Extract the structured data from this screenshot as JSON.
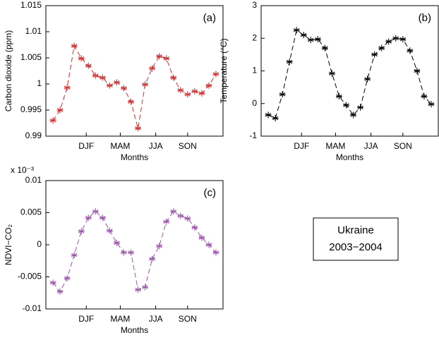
{
  "chart_data": [
    {
      "type": "line",
      "title": "(a)",
      "ylabel": "Carbon dioxide (ppm)",
      "xlabel": "Months",
      "color": "#e02828",
      "x": [
        1,
        2,
        3,
        4,
        5,
        6,
        7,
        8,
        9,
        10,
        11,
        12,
        13,
        14,
        15,
        16,
        17,
        18,
        19,
        20,
        21,
        22,
        23,
        24
      ],
      "values": [
        0.993,
        0.995,
        0.9993,
        1.0073,
        1.0049,
        1.0035,
        1.0016,
        1.0012,
        0.9997,
        1.0003,
        0.9992,
        0.9966,
        0.9915,
        0.9999,
        1.003,
        1.0053,
        1.0049,
        1.0012,
        0.9988,
        0.998,
        0.9986,
        0.9982,
        0.9997,
        1.0019
      ],
      "xlim": [
        0,
        25
      ],
      "xticks": [
        {
          "value": 5.7,
          "label": "DJF"
        },
        {
          "value": 10.5,
          "label": "MAM"
        },
        {
          "value": 15.5,
          "label": "JJA"
        },
        {
          "value": 20,
          "label": "SON"
        }
      ],
      "ylim": [
        0.99,
        1.015
      ],
      "yticks": [
        0.99,
        0.995,
        1,
        1.005,
        1.01,
        1.015
      ]
    },
    {
      "type": "line",
      "title": "(b)",
      "ylabel": "Temperature (°C)",
      "xlabel": "Months",
      "color": "#000000",
      "x": [
        1,
        2,
        3,
        4,
        5,
        6,
        7,
        8,
        9,
        10,
        11,
        12,
        13,
        14,
        15,
        16,
        17,
        18,
        19,
        20,
        21,
        22,
        23,
        24
      ],
      "values": [
        -0.35,
        -0.45,
        0.28,
        1.28,
        2.25,
        2.1,
        1.95,
        1.97,
        1.7,
        0.92,
        0.22,
        -0.05,
        -0.35,
        -0.12,
        0.75,
        1.5,
        1.7,
        1.9,
        2.0,
        1.97,
        1.62,
        1.0,
        0.22,
        -0.02
      ],
      "xlim": [
        0,
        25
      ],
      "xticks": [
        {
          "value": 5.7,
          "label": "DJF"
        },
        {
          "value": 10.5,
          "label": "MAM"
        },
        {
          "value": 15.5,
          "label": "JJA"
        },
        {
          "value": 20,
          "label": "SON"
        }
      ],
      "ylim": [
        -1,
        3
      ],
      "yticks": [
        -1,
        0,
        1,
        2,
        3
      ]
    },
    {
      "type": "line",
      "title": "(c)",
      "ylabel": "NDVI−CO₂",
      "xlabel": "Months",
      "color": "#a050b4",
      "multiplier": "x 10⁻³",
      "x": [
        1,
        2,
        3,
        4,
        5,
        6,
        7,
        8,
        9,
        10,
        11,
        12,
        13,
        14,
        15,
        16,
        17,
        18,
        19,
        20,
        21,
        22,
        23,
        24
      ],
      "values": [
        -0.0059,
        -0.0073,
        -0.0052,
        -0.0016,
        0.0021,
        0.0042,
        0.0052,
        0.0042,
        0.0022,
        0.0003,
        -0.0012,
        -0.0012,
        -0.007,
        -0.0066,
        -0.0022,
        -0.0002,
        0.0036,
        0.0052,
        0.0045,
        0.0041,
        0.0027,
        0.0011,
        0,
        -0.0012
      ],
      "xlim": [
        0,
        25
      ],
      "xticks": [
        {
          "value": 5.7,
          "label": "DJF"
        },
        {
          "value": 10.5,
          "label": "MAM"
        },
        {
          "value": 15.5,
          "label": "JJA"
        },
        {
          "value": 20,
          "label": "SON"
        }
      ],
      "ylim": [
        -0.01,
        0.01
      ],
      "yticks": [
        -0.01,
        -0.005,
        0,
        0.005,
        0.01
      ]
    }
  ],
  "annotation": {
    "lines": [
      "Ukraine",
      "2003−2004"
    ]
  }
}
